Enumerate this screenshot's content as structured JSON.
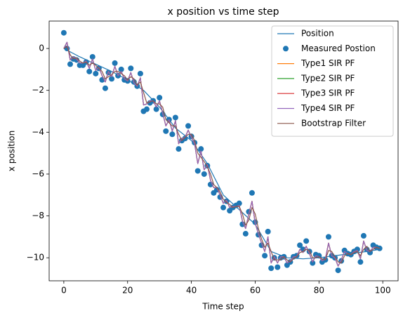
{
  "chart_data": {
    "type": "line",
    "title": "x position vs time step",
    "xlabel": "Time step",
    "ylabel": "x position",
    "legend": "upper right",
    "xlim": [
      -4.6,
      104.8
    ],
    "ylim": [
      -11.1,
      1.31
    ],
    "xticks": [
      0,
      20,
      40,
      60,
      80,
      100
    ],
    "yticks": [
      {
        "value": -10,
        "label": "−10"
      },
      {
        "value": -8,
        "label": "−8"
      },
      {
        "value": -6,
        "label": "−6"
      },
      {
        "value": -4,
        "label": "−4"
      },
      {
        "value": -2,
        "label": "−2"
      },
      0
    ],
    "x": [
      0,
      1,
      2,
      3,
      4,
      5,
      6,
      7,
      8,
      9,
      10,
      11,
      12,
      13,
      14,
      15,
      16,
      17,
      18,
      19,
      20,
      21,
      22,
      23,
      24,
      25,
      26,
      27,
      28,
      29,
      30,
      31,
      32,
      33,
      34,
      35,
      36,
      37,
      38,
      39,
      40,
      41,
      42,
      43,
      44,
      45,
      46,
      47,
      48,
      49,
      50,
      51,
      52,
      53,
      54,
      55,
      56,
      57,
      58,
      59,
      60,
      61,
      62,
      63,
      64,
      65,
      66,
      67,
      68,
      69,
      70,
      71,
      72,
      73,
      74,
      75,
      76,
      77,
      78,
      79,
      80,
      81,
      82,
      83,
      84,
      85,
      86,
      87,
      88,
      89,
      90,
      91,
      92,
      93,
      94,
      95,
      96,
      97,
      98,
      99
    ],
    "series": [
      {
        "name": "Position",
        "style": "line",
        "color": "#1f77b4",
        "x": [
          0,
          5,
          10,
          15,
          20,
          25,
          30,
          35,
          40,
          45,
          50,
          55,
          60,
          65,
          70,
          75,
          80,
          85,
          90,
          95,
          99
        ],
        "values": [
          0,
          -0.4,
          -0.75,
          -1.1,
          -1.5,
          -2.0,
          -2.8,
          -3.8,
          -4.4,
          -5.5,
          -7.0,
          -7.7,
          -8.4,
          -9.7,
          -10.0,
          -10.05,
          -10.0,
          -9.9,
          -9.8,
          -9.7,
          -9.6
        ]
      },
      {
        "name": "Measured Postion",
        "style": "scatter",
        "color": "#1f77b4",
        "values": [
          0.75,
          0.0,
          -0.75,
          -0.5,
          -0.55,
          -0.8,
          -0.8,
          -0.65,
          -1.1,
          -0.4,
          -1.2,
          -0.95,
          -1.5,
          -1.9,
          -1.15,
          -1.45,
          -0.7,
          -1.3,
          -1.0,
          -1.5,
          -1.55,
          -0.95,
          -1.6,
          -1.8,
          -1.2,
          -3.0,
          -2.9,
          -2.6,
          -2.5,
          -2.9,
          -2.35,
          -3.15,
          -3.95,
          -3.4,
          -4.1,
          -3.3,
          -4.8,
          -4.4,
          -4.3,
          -3.7,
          -4.2,
          -4.5,
          -5.85,
          -4.8,
          -6.0,
          -5.6,
          -6.5,
          -6.9,
          -6.75,
          -7.1,
          -7.6,
          -7.3,
          -7.75,
          -7.6,
          -7.5,
          -7.4,
          -8.4,
          -8.85,
          -7.8,
          -6.9,
          -8.3,
          -8.9,
          -9.4,
          -9.9,
          -8.75,
          -10.5,
          -10.0,
          -10.45,
          -10.0,
          -9.95,
          -10.35,
          -10.2,
          -9.95,
          -9.9,
          -9.4,
          -9.6,
          -9.2,
          -9.7,
          -10.25,
          -9.85,
          -9.9,
          -10.2,
          -10.1,
          -9.0,
          -9.9,
          -10.0,
          -10.6,
          -10.15,
          -9.65,
          -9.8,
          -9.85,
          -9.7,
          -9.6,
          -10.2,
          -8.95,
          -9.6,
          -9.75,
          -9.4,
          -9.5,
          -9.55
        ]
      },
      {
        "name": "Type1 SIR PF",
        "style": "line",
        "color": "#ff7f0e",
        "values": [
          0.0,
          0.3,
          -0.55,
          -0.4,
          -0.5,
          -0.7,
          -0.7,
          -0.6,
          -0.95,
          -0.5,
          -1.05,
          -0.9,
          -1.3,
          -1.6,
          -1.1,
          -1.35,
          -0.85,
          -1.3,
          -1.1,
          -1.45,
          -1.55,
          -1.15,
          -1.65,
          -1.8,
          -1.4,
          -2.7,
          -2.65,
          -2.5,
          -2.5,
          -2.8,
          -2.5,
          -3.1,
          -3.7,
          -3.4,
          -3.95,
          -3.45,
          -4.55,
          -4.3,
          -4.25,
          -3.9,
          -4.25,
          -4.55,
          -5.5,
          -4.9,
          -5.8,
          -5.55,
          -6.3,
          -6.65,
          -6.65,
          -7.0,
          -7.4,
          -7.25,
          -7.6,
          -7.55,
          -7.55,
          -7.5,
          -8.25,
          -8.6,
          -7.9,
          -7.3,
          -8.35,
          -8.85,
          -9.3,
          -9.7,
          -9.0,
          -10.25,
          -9.95,
          -10.25,
          -9.95,
          -9.95,
          -10.25,
          -10.15,
          -9.95,
          -9.95,
          -9.6,
          -9.75,
          -9.45,
          -9.8,
          -10.2,
          -9.9,
          -9.95,
          -10.15,
          -10.05,
          -9.3,
          -9.9,
          -10.0,
          -10.4,
          -10.1,
          -9.7,
          -9.8,
          -9.85,
          -9.7,
          -9.65,
          -10.05,
          -9.2,
          -9.65,
          -9.7,
          -9.5,
          -9.5,
          -9.55
        ]
      },
      {
        "name": "Type2 SIR PF",
        "style": "line",
        "color": "#2ca02c",
        "values": [
          0.0,
          0.3,
          -0.55,
          -0.4,
          -0.5,
          -0.7,
          -0.7,
          -0.6,
          -0.95,
          -0.5,
          -1.05,
          -0.9,
          -1.3,
          -1.6,
          -1.1,
          -1.35,
          -0.85,
          -1.3,
          -1.1,
          -1.45,
          -1.55,
          -1.15,
          -1.65,
          -1.8,
          -1.4,
          -2.7,
          -2.65,
          -2.5,
          -2.5,
          -2.8,
          -2.5,
          -3.1,
          -3.7,
          -3.4,
          -3.95,
          -3.45,
          -4.55,
          -4.3,
          -4.25,
          -3.9,
          -4.25,
          -4.55,
          -5.5,
          -4.9,
          -5.8,
          -5.55,
          -6.3,
          -6.65,
          -6.65,
          -7.0,
          -7.4,
          -7.25,
          -7.6,
          -7.55,
          -7.55,
          -7.5,
          -8.25,
          -8.6,
          -7.9,
          -7.3,
          -8.35,
          -8.85,
          -9.3,
          -9.7,
          -9.0,
          -10.25,
          -9.95,
          -10.25,
          -9.95,
          -9.95,
          -10.25,
          -10.15,
          -9.95,
          -9.95,
          -9.6,
          -9.75,
          -9.45,
          -9.8,
          -10.2,
          -9.9,
          -9.95,
          -10.15,
          -10.05,
          -9.3,
          -9.9,
          -10.0,
          -10.4,
          -10.1,
          -9.7,
          -9.8,
          -9.85,
          -9.7,
          -9.65,
          -10.05,
          -9.2,
          -9.65,
          -9.7,
          -9.5,
          -9.5,
          -9.55
        ]
      },
      {
        "name": "Type3 SIR PF",
        "style": "line",
        "color": "#d62728",
        "values": [
          0.0,
          0.3,
          -0.55,
          -0.4,
          -0.5,
          -0.7,
          -0.7,
          -0.6,
          -0.95,
          -0.5,
          -1.05,
          -0.9,
          -1.3,
          -1.6,
          -1.1,
          -1.35,
          -0.85,
          -1.3,
          -1.1,
          -1.45,
          -1.55,
          -1.15,
          -1.65,
          -1.8,
          -1.4,
          -2.7,
          -2.65,
          -2.5,
          -2.5,
          -2.8,
          -2.5,
          -3.1,
          -3.7,
          -3.4,
          -3.95,
          -3.45,
          -4.55,
          -4.3,
          -4.25,
          -3.9,
          -4.25,
          -4.55,
          -5.5,
          -4.9,
          -5.8,
          -5.55,
          -6.3,
          -6.65,
          -6.65,
          -7.0,
          -7.4,
          -7.25,
          -7.6,
          -7.55,
          -7.55,
          -7.5,
          -8.25,
          -8.6,
          -7.9,
          -7.3,
          -8.35,
          -8.85,
          -9.3,
          -9.7,
          -9.0,
          -10.25,
          -9.95,
          -10.25,
          -9.95,
          -9.95,
          -10.25,
          -10.15,
          -9.95,
          -9.95,
          -9.6,
          -9.75,
          -9.45,
          -9.8,
          -10.2,
          -9.9,
          -9.95,
          -10.15,
          -10.05,
          -9.3,
          -9.9,
          -10.0,
          -10.4,
          -10.1,
          -9.7,
          -9.8,
          -9.85,
          -9.7,
          -9.65,
          -10.05,
          -9.2,
          -9.65,
          -9.7,
          -9.5,
          -9.5,
          -9.55
        ]
      },
      {
        "name": "Type4 SIR PF",
        "style": "line",
        "color": "#9467bd",
        "values": [
          0.0,
          0.3,
          -0.55,
          -0.4,
          -0.5,
          -0.7,
          -0.7,
          -0.6,
          -0.95,
          -0.5,
          -1.05,
          -0.9,
          -1.3,
          -1.6,
          -1.1,
          -1.35,
          -0.85,
          -1.3,
          -1.1,
          -1.45,
          -1.55,
          -1.15,
          -1.65,
          -1.8,
          -1.4,
          -2.7,
          -2.65,
          -2.5,
          -2.5,
          -2.8,
          -2.5,
          -3.1,
          -3.7,
          -3.4,
          -3.95,
          -3.45,
          -4.55,
          -4.3,
          -4.25,
          -3.9,
          -4.25,
          -4.55,
          -5.5,
          -4.9,
          -5.8,
          -5.55,
          -6.3,
          -6.65,
          -6.65,
          -7.0,
          -7.4,
          -7.25,
          -7.6,
          -7.55,
          -7.55,
          -7.5,
          -8.25,
          -8.6,
          -7.9,
          -7.3,
          -8.35,
          -8.85,
          -9.3,
          -9.7,
          -9.0,
          -10.25,
          -9.95,
          -10.25,
          -9.95,
          -9.95,
          -10.25,
          -10.15,
          -9.95,
          -9.95,
          -9.6,
          -9.75,
          -9.45,
          -9.8,
          -10.2,
          -9.9,
          -9.95,
          -10.15,
          -10.05,
          -9.3,
          -9.9,
          -10.0,
          -10.4,
          -10.1,
          -9.7,
          -9.8,
          -9.85,
          -9.7,
          -9.65,
          -10.05,
          -9.2,
          -9.65,
          -9.7,
          -9.5,
          -9.5,
          -9.55
        ]
      },
      {
        "name": "Bootstrap Filter",
        "style": "line",
        "color": "#8c564b",
        "values": [
          0.0,
          0.1,
          -0.3,
          -0.5,
          -0.45,
          -0.6,
          -0.7,
          -0.65,
          -0.8,
          -0.7,
          -0.8,
          -0.95,
          -1.1,
          -1.45,
          -1.35,
          -1.25,
          -1.1,
          -1.1,
          -1.2,
          -1.3,
          -1.5,
          -1.35,
          -1.45,
          -1.75,
          -1.6,
          -2.1,
          -2.6,
          -2.55,
          -2.5,
          -2.65,
          -2.65,
          -2.8,
          -3.4,
          -3.55,
          -3.7,
          -3.7,
          -4.1,
          -4.4,
          -4.25,
          -4.1,
          -4.1,
          -4.4,
          -5.0,
          -5.2,
          -5.4,
          -5.65,
          -6.0,
          -6.5,
          -6.65,
          -6.85,
          -7.2,
          -7.35,
          -7.45,
          -7.6,
          -7.55,
          -7.55,
          -7.9,
          -8.45,
          -8.2,
          -7.6,
          -7.9,
          -8.6,
          -9.1,
          -9.5,
          -9.3,
          -9.7,
          -10.1,
          -10.1,
          -10.1,
          -9.95,
          -10.1,
          -10.2,
          -10.05,
          -9.95,
          -9.75,
          -9.7,
          -9.6,
          -9.65,
          -10.0,
          -10.0,
          -9.95,
          -10.05,
          -10.1,
          -9.65,
          -9.7,
          -9.95,
          -10.2,
          -10.25,
          -9.9,
          -9.8,
          -9.85,
          -9.75,
          -9.7,
          -9.9,
          -9.6,
          -9.45,
          -9.7,
          -9.6,
          -9.5,
          -9.55
        ]
      }
    ]
  }
}
